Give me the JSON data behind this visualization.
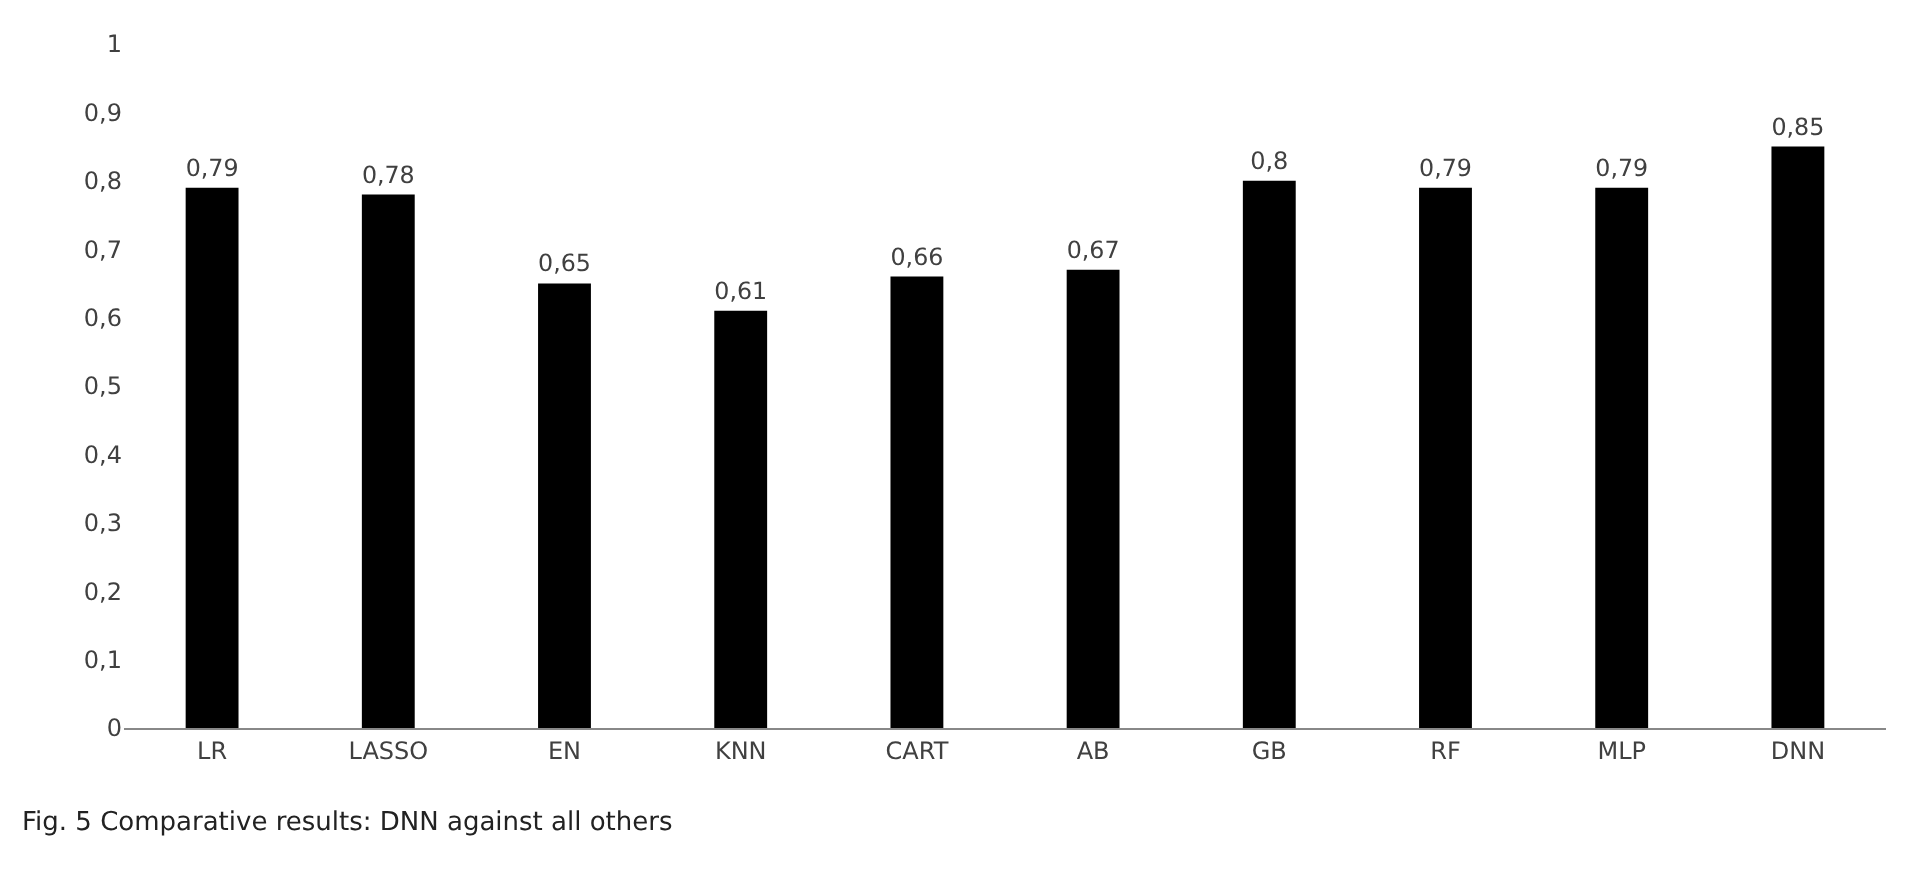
{
  "chart_data": {
    "type": "bar",
    "categories": [
      "LR",
      "LASSO",
      "EN",
      "KNN",
      "CART",
      "AB",
      "GB",
      "RF",
      "MLP",
      "DNN"
    ],
    "values": [
      0.79,
      0.78,
      0.65,
      0.61,
      0.66,
      0.67,
      0.8,
      0.79,
      0.79,
      0.85
    ],
    "value_labels": [
      "0,79",
      "0,78",
      "0,65",
      "0,61",
      "0,66",
      "0,67",
      "0,8",
      "0,79",
      "0,79",
      "0,85"
    ],
    "color": "#000000",
    "ylim": [
      0,
      1
    ],
    "yticks": [
      {
        "value": 0,
        "label": "0"
      },
      {
        "value": 0.1,
        "label": "0,1"
      },
      {
        "value": 0.2,
        "label": "0,2"
      },
      {
        "value": 0.3,
        "label": "0,3"
      },
      {
        "value": 0.4,
        "label": "0,4"
      },
      {
        "value": 0.5,
        "label": "0,5"
      },
      {
        "value": 0.6,
        "label": "0,6"
      },
      {
        "value": 0.7,
        "label": "0,7"
      },
      {
        "value": 0.8,
        "label": "0,8"
      },
      {
        "value": 0.9,
        "label": "0,9"
      },
      {
        "value": 1,
        "label": "1"
      }
    ],
    "grid": false,
    "legend": false,
    "annotations": [
      "Fig. 5 Comparative results: DNN against all others"
    ]
  }
}
